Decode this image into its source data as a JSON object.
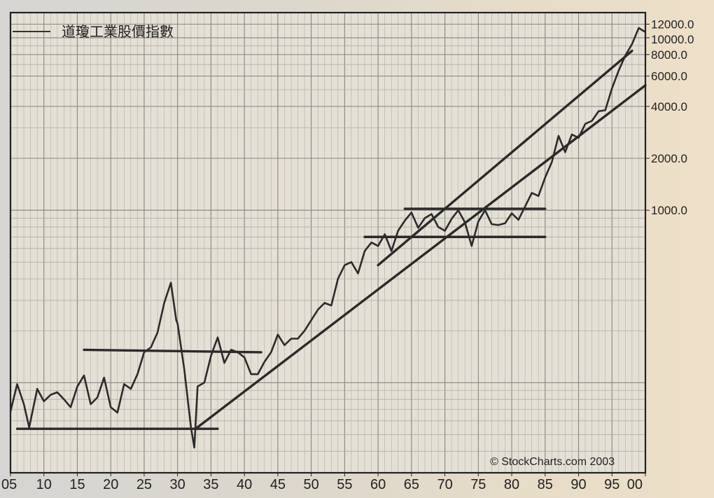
{
  "chart_data": {
    "type": "line",
    "title": "",
    "xlabel": "",
    "ylabel": "",
    "y_scale": "log",
    "xlim": [
      1905,
      2000
    ],
    "ylim": [
      30,
      14000
    ],
    "grid": true,
    "legend": {
      "placement": "top-left",
      "entries": [
        "道瓊工業股價指數"
      ]
    },
    "annotation": "© StockCharts.com 2003",
    "x_tick_labels": [
      "05",
      "10",
      "15",
      "20",
      "25",
      "30",
      "35",
      "40",
      "45",
      "50",
      "55",
      "60",
      "65",
      "70",
      "75",
      "80",
      "85",
      "90",
      "95",
      "00"
    ],
    "x_tick_values": [
      1905,
      1910,
      1915,
      1920,
      1925,
      1930,
      1935,
      1940,
      1945,
      1950,
      1955,
      1960,
      1965,
      1970,
      1975,
      1980,
      1985,
      1990,
      1995,
      2000
    ],
    "y_tick_labels": [
      "12000.0",
      "10000.0",
      "8000.0",
      "6000.0",
      "4000.0",
      "2000.0",
      "1000.0"
    ],
    "y_tick_values": [
      12000,
      10000,
      8000,
      6000,
      4000,
      2000,
      1000
    ],
    "series": [
      {
        "name": "道瓊工業股價指數",
        "x": [
          1905,
          1906,
          1907,
          1907.8,
          1909,
          1910,
          1911,
          1912,
          1913,
          1914,
          1915,
          1916,
          1917,
          1918,
          1919,
          1920,
          1921,
          1922,
          1923,
          1924,
          1925,
          1926,
          1927,
          1928,
          1929,
          1929.8,
          1930,
          1931,
          1932,
          1932.5,
          1933,
          1934,
          1935,
          1936,
          1937,
          1938,
          1939,
          1940,
          1941,
          1942,
          1943,
          1944,
          1945,
          1946,
          1947,
          1948,
          1949,
          1950,
          1951,
          1952,
          1953,
          1954,
          1955,
          1956,
          1957,
          1958,
          1959,
          1960,
          1961,
          1962,
          1963,
          1964,
          1965,
          1966,
          1967,
          1968,
          1969,
          1970,
          1971,
          1972,
          1973,
          1974,
          1975,
          1976,
          1977,
          1978,
          1979,
          1980,
          1981,
          1982,
          1983,
          1984,
          1985,
          1986,
          1987,
          1988,
          1989,
          1990,
          1991,
          1992,
          1993,
          1994,
          1995,
          1996,
          1997,
          1998,
          1999,
          2000
        ],
        "values": [
          68,
          98,
          75,
          55,
          92,
          78,
          85,
          88,
          80,
          72,
          95,
          110,
          75,
          82,
          107,
          72,
          67,
          98,
          92,
          112,
          150,
          160,
          195,
          290,
          380,
          230,
          220,
          120,
          55,
          42,
          95,
          100,
          143,
          183,
          130,
          155,
          150,
          140,
          112,
          112,
          132,
          150,
          190,
          165,
          180,
          180,
          200,
          230,
          265,
          290,
          280,
          400,
          480,
          500,
          430,
          580,
          650,
          620,
          725,
          580,
          760,
          870,
          970,
          790,
          900,
          950,
          800,
          760,
          890,
          1000,
          850,
          620,
          860,
          1000,
          830,
          820,
          840,
          960,
          880,
          1050,
          1260,
          1210,
          1550,
          1900,
          2700,
          2170,
          2750,
          2630,
          3170,
          3300,
          3750,
          3800,
          5100,
          6450,
          7900,
          9200,
          11400,
          10800
        ]
      }
    ],
    "trendlines": [
      {
        "x": [
          1906,
          1936
        ],
        "y": [
          54,
          54
        ]
      },
      {
        "x": [
          1916,
          1942.5
        ],
        "y": [
          155,
          150
        ]
      },
      {
        "x": [
          1958,
          1985
        ],
        "y": [
          700,
          700
        ]
      },
      {
        "x": [
          1964,
          1985
        ],
        "y": [
          1020,
          1020
        ]
      },
      {
        "x": [
          1932.7,
          2000
        ],
        "y": [
          54,
          5300
        ]
      },
      {
        "x": [
          1960,
          1998
        ],
        "y": [
          480,
          8400
        ]
      }
    ]
  }
}
